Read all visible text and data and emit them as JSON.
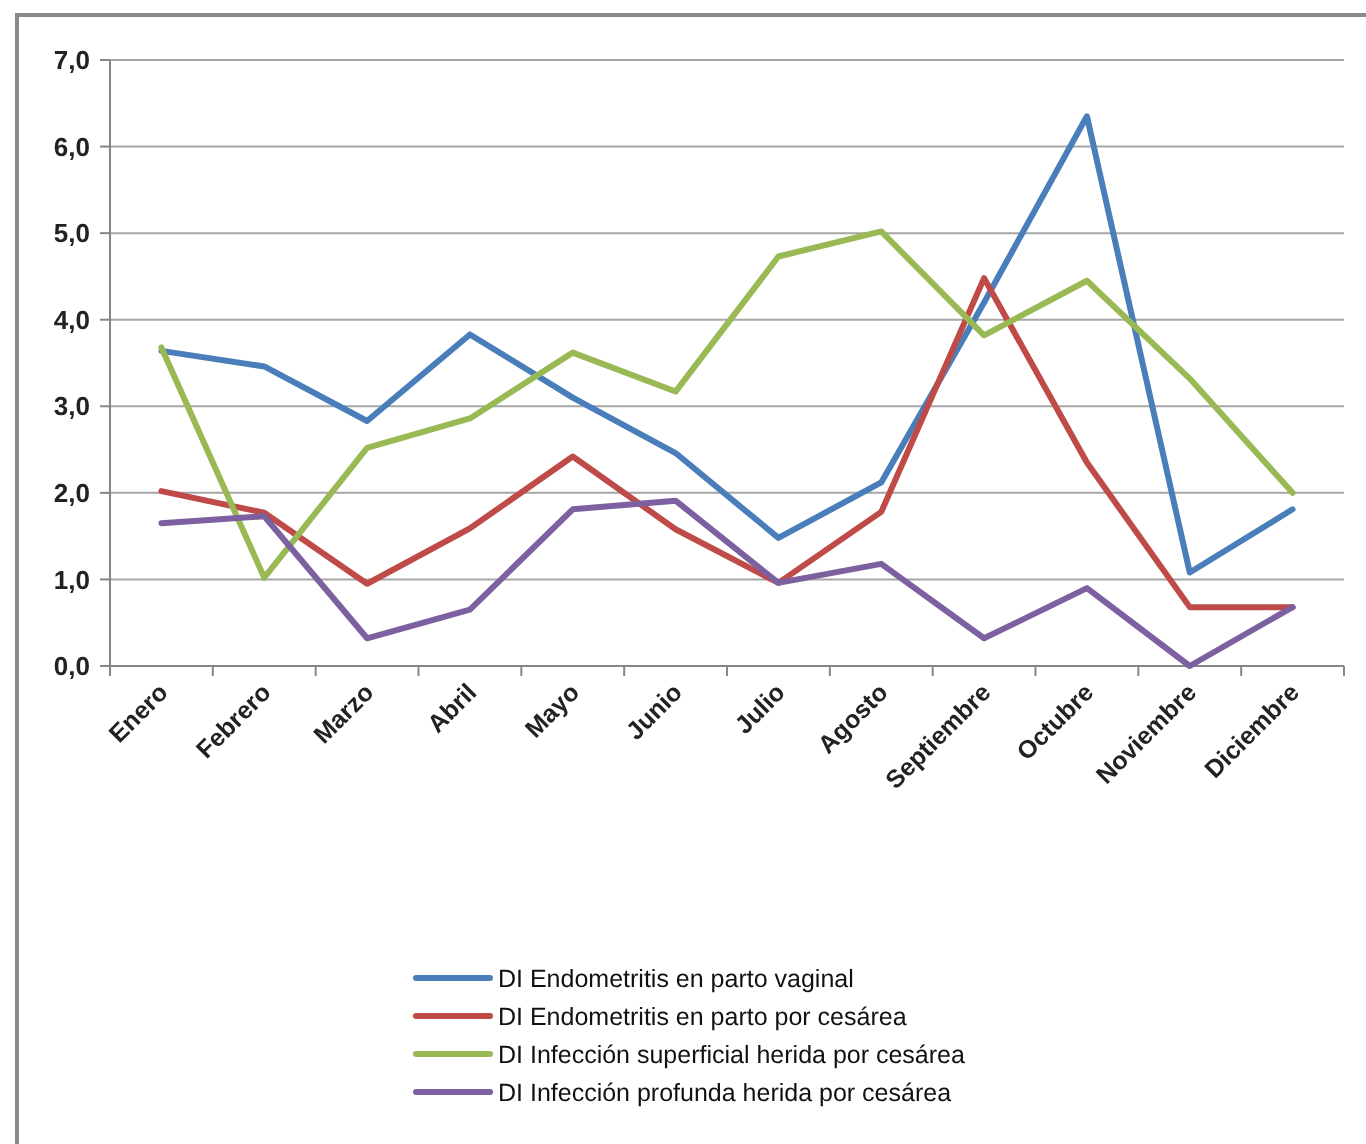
{
  "chart_data": {
    "type": "line",
    "categories": [
      "Enero",
      "Febrero",
      "Marzo",
      "Abril",
      "Mayo",
      "Junio",
      "Julio",
      "Agosto",
      "Septiembre",
      "Octubre",
      "Noviembre",
      "Diciembre"
    ],
    "series": [
      {
        "name": "DI Endometritis en parto vaginal",
        "color": "#4a7ebb",
        "values": [
          3.64,
          3.46,
          2.83,
          3.83,
          3.1,
          2.46,
          1.48,
          2.12,
          4.2,
          6.35,
          1.08,
          1.81
        ]
      },
      {
        "name": "DI Endometritis en parto por cesárea",
        "color": "#be4b48",
        "values": [
          2.02,
          1.77,
          0.95,
          1.59,
          2.42,
          1.58,
          0.96,
          1.78,
          4.48,
          2.35,
          0.68,
          0.68
        ]
      },
      {
        "name": "DI Infección superficial herida por cesárea",
        "color": "#98b954",
        "values": [
          3.68,
          1.02,
          2.52,
          2.86,
          3.62,
          3.17,
          4.73,
          5.02,
          3.82,
          4.45,
          3.32,
          2.0
        ]
      },
      {
        "name": "DI Infección profunda herida por cesárea",
        "color": "#7d60a0",
        "values": [
          1.65,
          1.73,
          0.32,
          0.65,
          1.81,
          1.91,
          0.96,
          1.18,
          0.32,
          0.9,
          0.0,
          0.68
        ]
      }
    ],
    "ylim": [
      0,
      7
    ],
    "yticks": [
      {
        "value": 0,
        "label": "0,0"
      },
      {
        "value": 1,
        "label": "1,0"
      },
      {
        "value": 2,
        "label": "2,0"
      },
      {
        "value": 3,
        "label": "3,0"
      },
      {
        "value": 4,
        "label": "4,0"
      },
      {
        "value": 5,
        "label": "5,0"
      },
      {
        "value": 6,
        "label": "6,0"
      },
      {
        "value": 7,
        "label": "7,0"
      }
    ],
    "grid": "y",
    "legend": "bottom",
    "marker": "none",
    "line_style": "solid"
  }
}
